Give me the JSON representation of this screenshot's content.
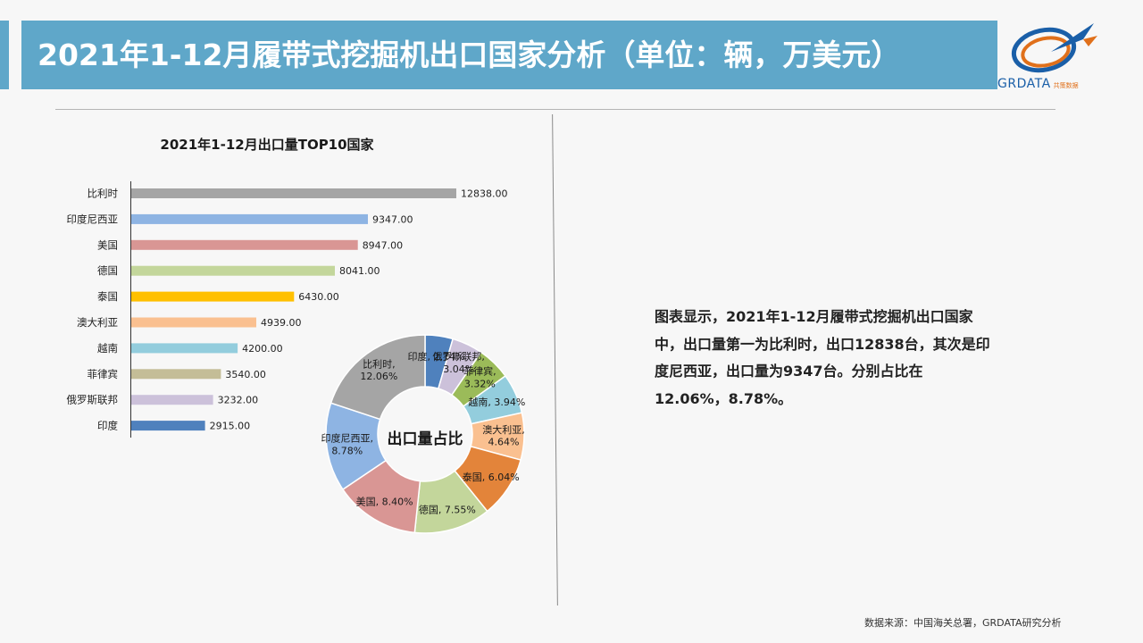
{
  "header": {
    "title": "2021年1-12月履带式挖掘机出口国家分析（单位：辆，万美元）",
    "logo_text": "GRDATA",
    "logo_sub": "共策数据"
  },
  "description": "图表显示，2021年1-12月履带式挖掘机出口国家中，出口量第一为比利时，出口12838台，其次是印度尼西亚，出口量为9347台。分别占比在12.06%，8.78%。",
  "source": "数据来源：中国海关总署，GRDATA研究分析",
  "chart_data": [
    {
      "type": "bar",
      "orientation": "horizontal",
      "title": "2021年1-12月出口量TOP10国家",
      "categories": [
        "比利时",
        "印度尼西亚",
        "美国",
        "德国",
        "泰国",
        "澳大利亚",
        "越南",
        "菲律宾",
        "俄罗斯联邦",
        "印度"
      ],
      "values": [
        12838.0,
        9347.0,
        8947.0,
        8041.0,
        6430.0,
        4939.0,
        4200.0,
        3540.0,
        3232.0,
        2915.0
      ],
      "value_labels": [
        "12838.00",
        "9347.00",
        "8947.00",
        "8041.00",
        "6430.00",
        "4939.00",
        "4200.00",
        "3540.00",
        "3232.00",
        "2915.00"
      ],
      "colors": [
        "#a5a5a5",
        "#8eb4e3",
        "#d99694",
        "#c3d69b",
        "#ffc000",
        "#fac090",
        "#93cddd",
        "#c4bd97",
        "#ccc1da",
        "#4f81bd"
      ],
      "xlim": [
        0,
        12838
      ]
    },
    {
      "type": "pie",
      "donut": true,
      "title": "出口量占比",
      "slices": [
        {
          "label": "印度, 2.74%",
          "value": 2.74,
          "color": "#4f81bd"
        },
        {
          "label": "俄罗斯联邦, 3.04%",
          "value": 3.04,
          "color": "#ccc1da"
        },
        {
          "label": "菲律宾, 3.32%",
          "value": 3.32,
          "color": "#9bbb59"
        },
        {
          "label": "越南, 3.94%",
          "value": 3.94,
          "color": "#93cddd"
        },
        {
          "label": "澳大利亚, 4.64%",
          "value": 4.64,
          "color": "#fac090"
        },
        {
          "label": "泰国, 6.04%",
          "value": 6.04,
          "color": "#e3843a"
        },
        {
          "label": "德国, 7.55%",
          "value": 7.55,
          "color": "#c3d69b"
        },
        {
          "label": "美国, 8.40%",
          "value": 8.4,
          "color": "#d99694"
        },
        {
          "label": "印度尼西亚, 8.78%",
          "value": 8.78,
          "color": "#8eb4e3"
        },
        {
          "label": "比利时, 12.06%",
          "value": 12.06,
          "color": "#a5a5a5"
        }
      ]
    }
  ]
}
